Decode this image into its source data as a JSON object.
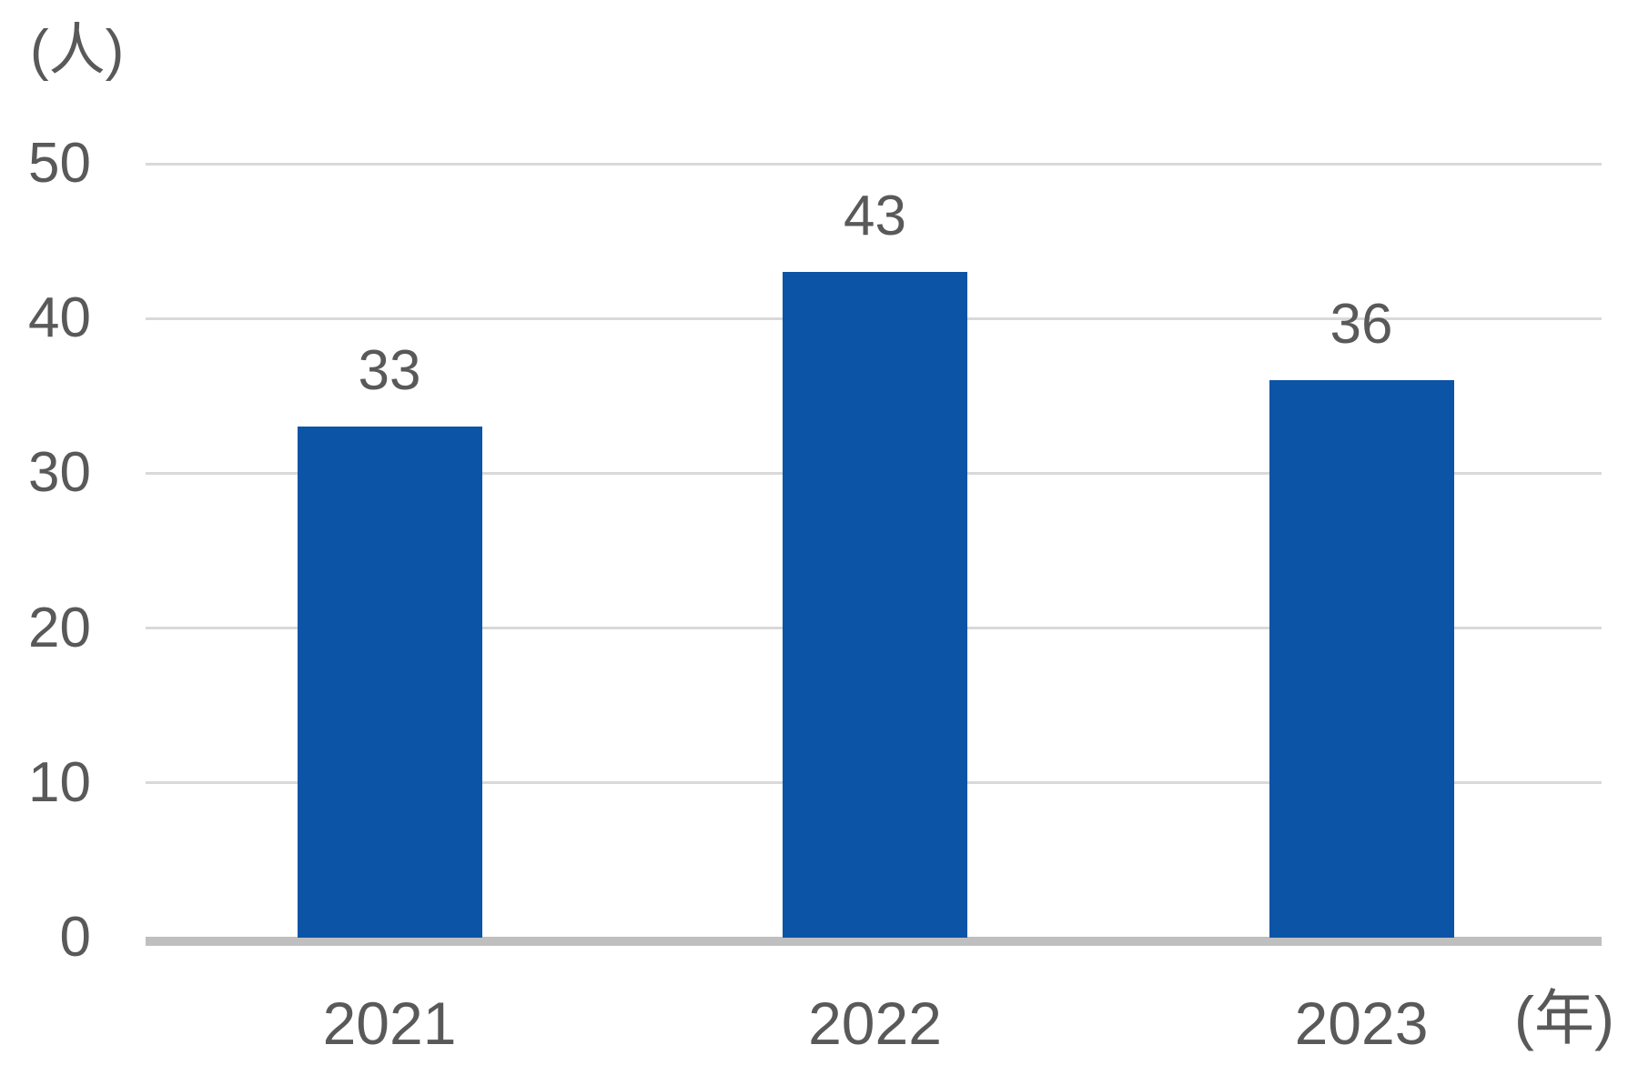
{
  "chart_data": {
    "type": "bar",
    "categories": [
      "2021",
      "2022",
      "2023"
    ],
    "values": [
      33,
      43,
      36
    ],
    "title": "",
    "xlabel": "(年)",
    "ylabel": "(人)",
    "ylim": [
      0,
      50
    ],
    "ytick_step": 10,
    "ytick_labels": [
      "0",
      "10",
      "20",
      "30",
      "40",
      "50"
    ],
    "grid": true,
    "legend": false,
    "data_labels": [
      "33",
      "43",
      "36"
    ]
  },
  "colors": {
    "bar": "#0B54A6",
    "text": "#595959",
    "gridline": "#D9D9D9",
    "axis_line": "#BFBFBF"
  }
}
